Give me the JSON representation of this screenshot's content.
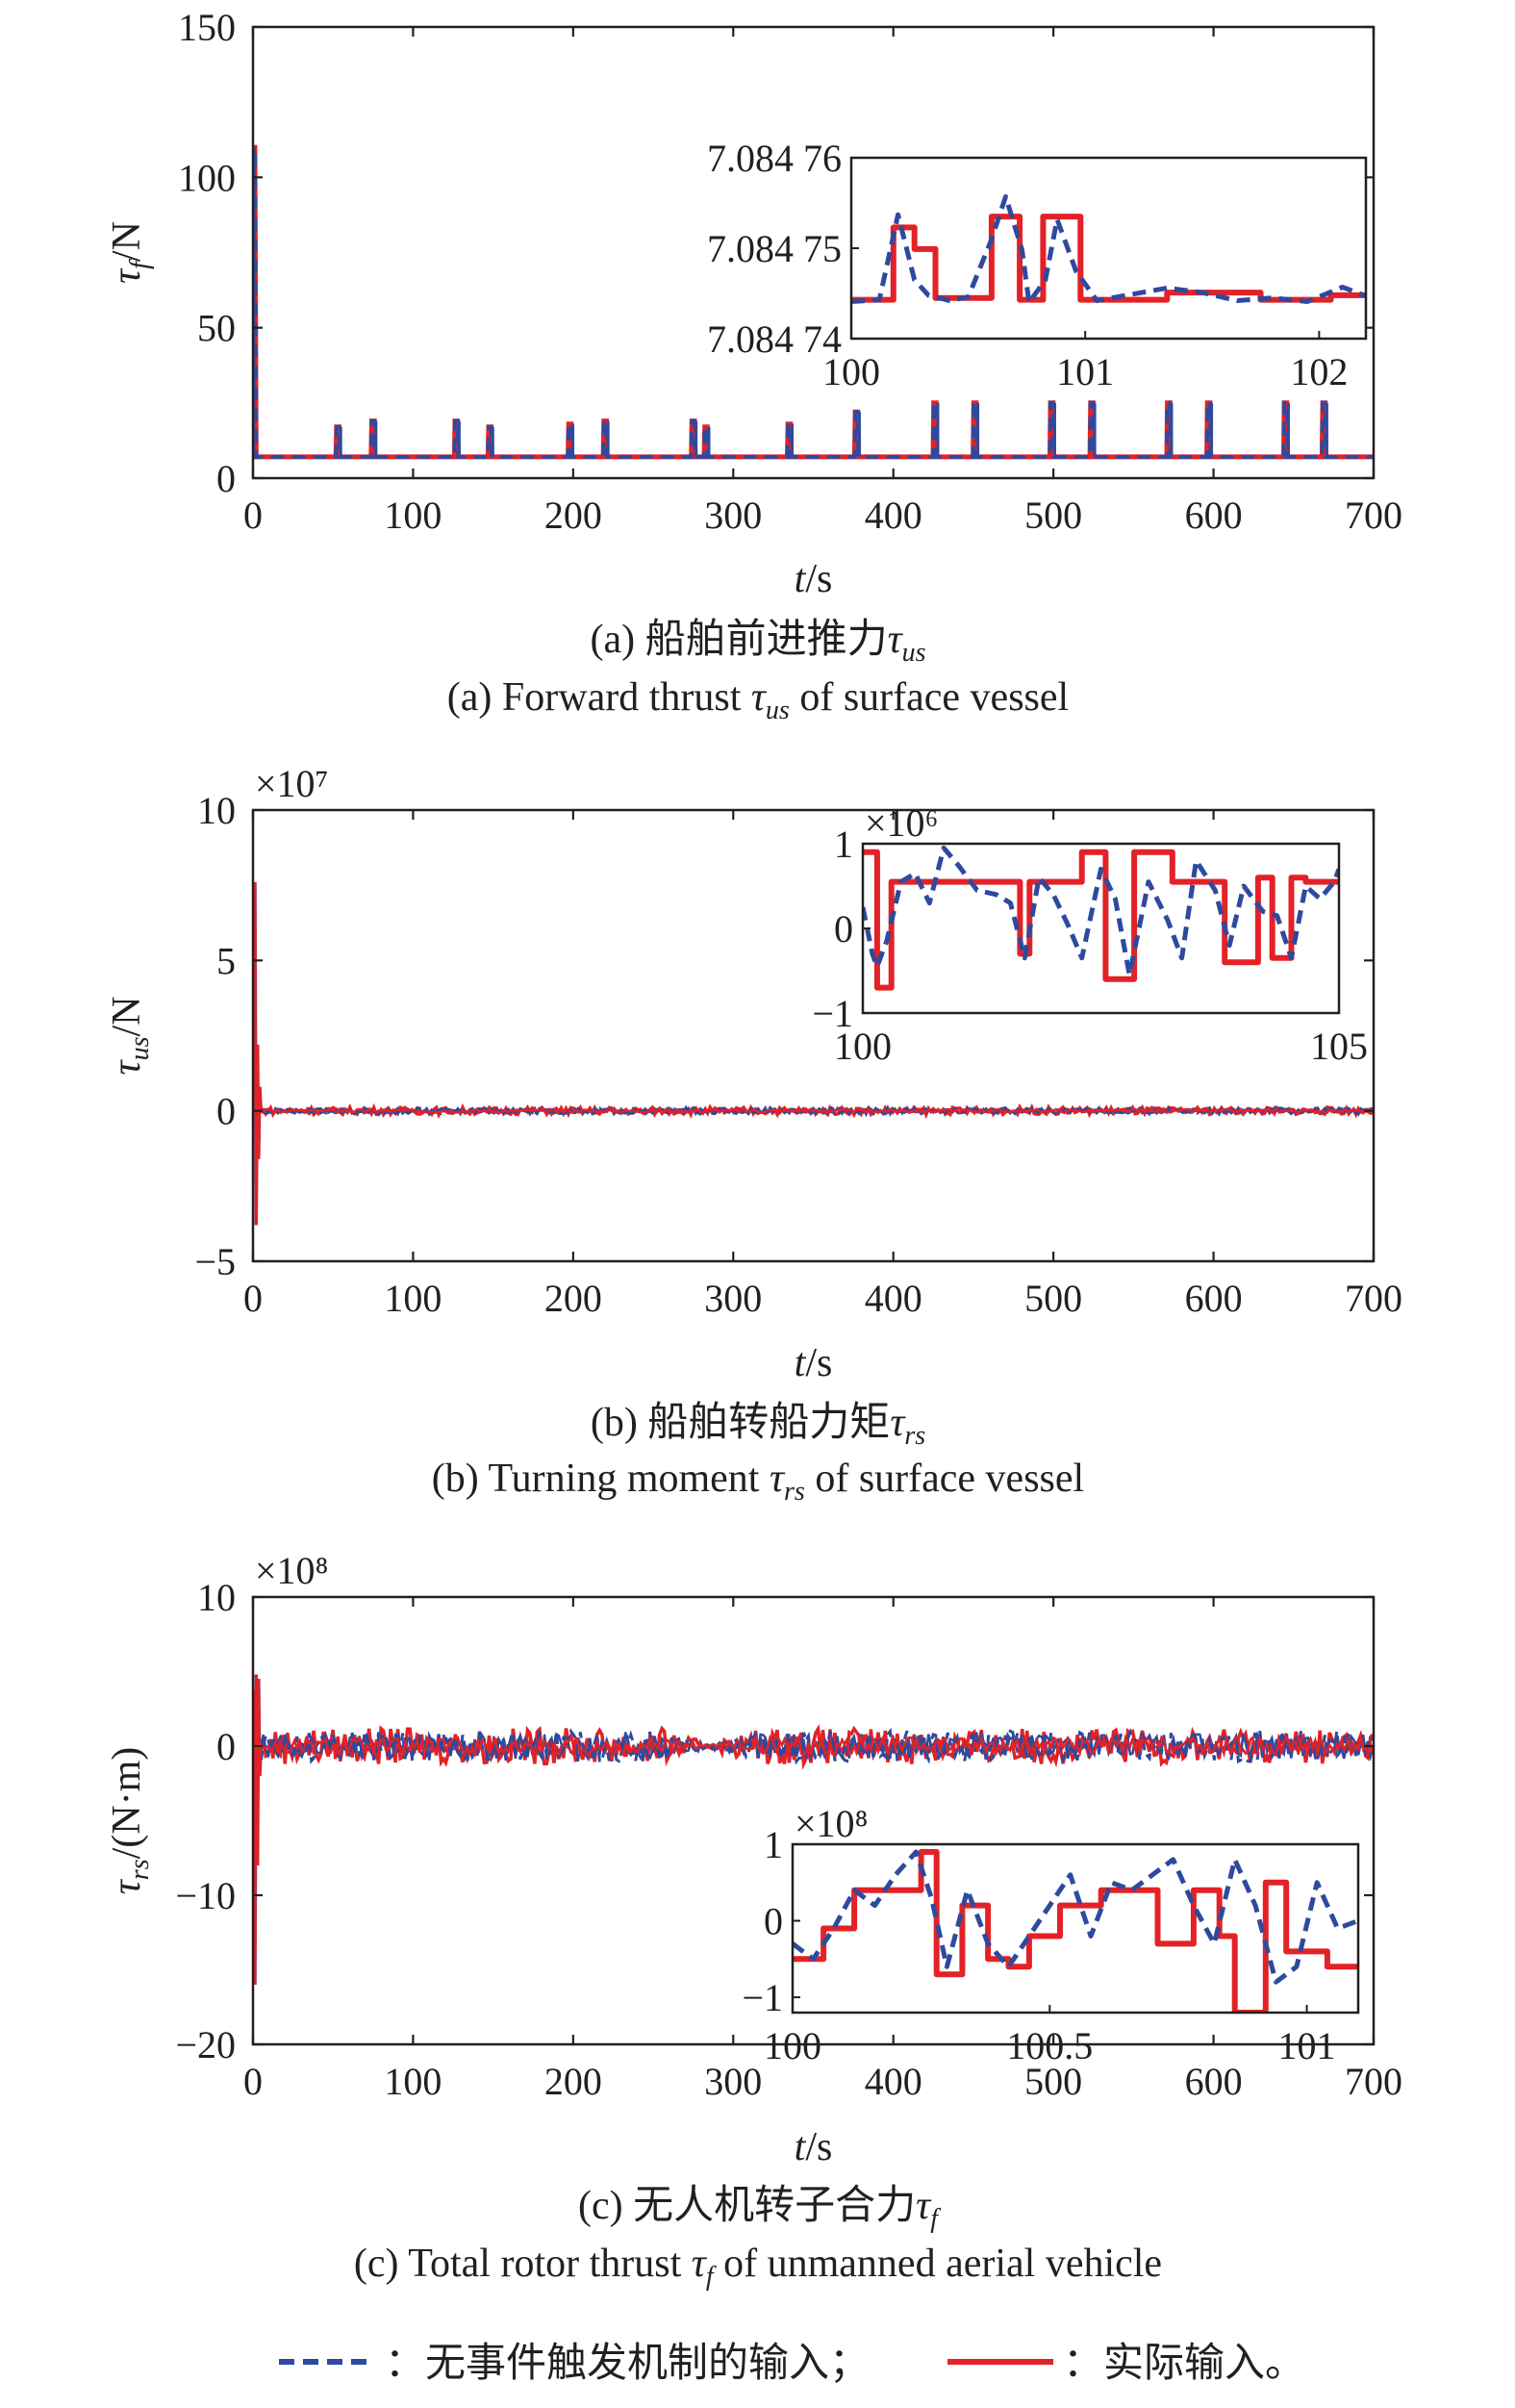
{
  "colors": {
    "no_trigger": "#2e4a9e",
    "actual": "#e32227",
    "axis": "#231f20"
  },
  "legend": {
    "no_trigger_label": "：无事件触发机制的输入；",
    "actual_label": "：实际输入。"
  },
  "chart_data": [
    {
      "id": "a",
      "type": "line",
      "caption_cn_prefix": "(a) 船舶前进推力",
      "caption_cn_sym": "τ",
      "caption_cn_sub": "us",
      "caption_en_prefix": "(a) Forward thrust ",
      "caption_en_sym": "τ",
      "caption_en_sub": "us",
      "caption_en_suffix": " of  surface vessel",
      "xlabel_var": "t",
      "xlabel_unit": "/s",
      "ylabel_sym": "τ",
      "ylabel_sub": "f",
      "ylabel_unit": "/N",
      "xlim": [
        0,
        700
      ],
      "ylim": [
        0,
        150
      ],
      "xticks": [
        0,
        100,
        200,
        300,
        400,
        500,
        600,
        700
      ],
      "yticks": [
        0,
        50,
        100,
        150
      ],
      "ytick_labels": [
        "0",
        "50",
        "100",
        "150"
      ],
      "exponent": "",
      "baseline": 7.08,
      "initial_spike": 110,
      "pulses": [
        {
          "t": 53,
          "v": 17
        },
        {
          "t": 75,
          "v": 19
        },
        {
          "t": 127,
          "v": 19
        },
        {
          "t": 148,
          "v": 17
        },
        {
          "t": 198,
          "v": 18
        },
        {
          "t": 220,
          "v": 19
        },
        {
          "t": 275,
          "v": 19
        },
        {
          "t": 283,
          "v": 17
        },
        {
          "t": 335,
          "v": 18
        },
        {
          "t": 377,
          "v": 22
        },
        {
          "t": 426,
          "v": 25
        },
        {
          "t": 451,
          "v": 25
        },
        {
          "t": 499,
          "v": 25
        },
        {
          "t": 524,
          "v": 25
        },
        {
          "t": 572,
          "v": 25
        },
        {
          "t": 597,
          "v": 25
        },
        {
          "t": 645,
          "v": 25
        },
        {
          "t": 669,
          "v": 25
        }
      ],
      "inset": {
        "xlim": [
          100,
          102.2
        ],
        "ylim": [
          7.08474,
          7.08476
        ],
        "xticks": [
          100,
          101,
          102
        ],
        "xtick_labels": [
          "100",
          "101",
          "102"
        ],
        "yticks": [
          7.08474,
          7.08475,
          7.08476
        ],
        "ytick_labels": [
          "7.084 74",
          "7.084 75",
          "7.084 76"
        ],
        "exponent": "",
        "series": [
          {
            "key": "no_trigger",
            "x": [
              100,
              100.12,
              100.2,
              100.27,
              100.33,
              100.42,
              100.5,
              100.6,
              100.66,
              100.73,
              100.76,
              100.83,
              100.88,
              100.96,
              101.05,
              101.2,
              101.35,
              101.5,
              101.65,
              101.8,
              101.95,
              102.1,
              102.2
            ],
            "y": [
              7.0847441,
              7.0847443,
              7.0847537,
              7.0847465,
              7.0847448,
              7.0847442,
              7.0847446,
              7.084751,
              7.0847557,
              7.0847498,
              7.084744,
              7.0847465,
              7.0847532,
              7.0847475,
              7.0847442,
              7.0847449,
              7.0847456,
              7.0847451,
              7.0847442,
              7.0847445,
              7.0847441,
              7.0847457,
              7.0847447
            ]
          },
          {
            "key": "actual",
            "x": [
              100,
              100.18,
              100.18,
              100.27,
              100.27,
              100.36,
              100.36,
              100.6,
              100.6,
              100.72,
              100.72,
              100.82,
              100.82,
              100.86,
              100.86,
              100.98,
              100.98,
              101.35,
              101.35,
              101.75,
              101.75,
              102.05,
              102.05,
              102.2
            ],
            "y": [
              7.0847443,
              7.0847443,
              7.0847523,
              7.0847523,
              7.0847499,
              7.0847499,
              7.0847445,
              7.0847445,
              7.0847535,
              7.0847535,
              7.0847443,
              7.0847443,
              7.0847535,
              7.0847535,
              7.0847535,
              7.0847535,
              7.0847443,
              7.0847443,
              7.0847451,
              7.0847451,
              7.0847443,
              7.0847443,
              7.0847448,
              7.0847448
            ]
          }
        ]
      }
    },
    {
      "id": "b",
      "type": "line",
      "caption_cn_prefix": "(b) 船舶转船力矩",
      "caption_cn_sym": "τ",
      "caption_cn_sub": "rs",
      "caption_en_prefix": "(b) Turning moment ",
      "caption_en_sym": "τ",
      "caption_en_sub": "rs",
      "caption_en_suffix": " of surface vessel",
      "xlabel_var": "t",
      "xlabel_unit": "/s",
      "ylabel_sym": "τ",
      "ylabel_sub": "us",
      "ylabel_unit": "/N",
      "xlim": [
        0,
        700
      ],
      "ylim": [
        -5,
        10
      ],
      "xticks": [
        0,
        100,
        200,
        300,
        400,
        500,
        600,
        700
      ],
      "yticks": [
        -5,
        0,
        5,
        10
      ],
      "ytick_labels": [
        "−5",
        "0",
        "5",
        "10"
      ],
      "exponent": "×10⁷",
      "initial_transient": {
        "t": [
          0.5,
          1.2,
          2,
          2.8,
          3.5,
          4.2,
          5
        ],
        "v": [
          6.8,
          7.6,
          -3.8,
          2.2,
          -1.6,
          0.8,
          0
        ]
      },
      "noise_amplitude": 0.12,
      "inset": {
        "xlim": [
          100,
          105
        ],
        "ylim": [
          -1,
          1
        ],
        "xticks": [
          100,
          105
        ],
        "xtick_labels": [
          "100",
          "105"
        ],
        "yticks": [
          -1,
          0,
          1
        ],
        "ytick_labels": [
          "−1",
          "0",
          "1"
        ],
        "exponent": "×10⁶",
        "series": [
          {
            "key": "no_trigger",
            "x": [
              100,
              100.1,
              100.15,
              100.25,
              100.4,
              100.55,
              100.7,
              100.85,
              101,
              101.2,
              101.4,
              101.55,
              101.7,
              101.85,
              102,
              102.15,
              102.3,
              102.5,
              102.65,
              102.8,
              103,
              103.2,
              103.35,
              103.5,
              103.7,
              103.85,
              104,
              104.2,
              104.35,
              104.5,
              104.65,
              104.8,
              104.95,
              105
            ],
            "y": [
              0.25,
              -0.3,
              -0.45,
              -0.15,
              0.55,
              0.65,
              0.3,
              0.95,
              0.75,
              0.45,
              0.4,
              0.3,
              -0.35,
              0.6,
              0.4,
              0.05,
              -0.35,
              0.7,
              0.35,
              -0.55,
              0.55,
              0.1,
              -0.35,
              0.8,
              0.45,
              -0.2,
              0.5,
              0.2,
              0.15,
              -0.35,
              0.5,
              0.35,
              0.55,
              0.7
            ]
          },
          {
            "key": "actual",
            "x": [
              100,
              100.15,
              100.15,
              100.3,
              100.3,
              100.75,
              100.75,
              101.65,
              101.65,
              101.75,
              101.75,
              102.3,
              102.3,
              102.55,
              102.55,
              102.85,
              102.85,
              103.25,
              103.25,
              103.35,
              103.35,
              103.8,
              103.8,
              104.15,
              104.15,
              104.3,
              104.3,
              104.5,
              104.5,
              104.65,
              104.65,
              105
            ],
            "y": [
              0.9,
              0.9,
              -0.7,
              -0.7,
              0.55,
              0.55,
              0.55,
              0.55,
              -0.3,
              -0.3,
              0.55,
              0.55,
              0.9,
              0.9,
              -0.6,
              -0.6,
              0.9,
              0.9,
              0.55,
              0.55,
              0.55,
              0.55,
              -0.4,
              -0.4,
              0.6,
              0.6,
              -0.35,
              -0.35,
              0.6,
              0.6,
              0.55,
              0.55
            ]
          }
        ]
      }
    },
    {
      "id": "c",
      "type": "line",
      "caption_cn_prefix": "(c) 无人机转子合力",
      "caption_cn_sym": "τ",
      "caption_cn_sub": "f",
      "caption_en_prefix": "(c) Total rotor thrust ",
      "caption_en_sym": "τ",
      "caption_en_sub": "f",
      "caption_en_suffix": " of unmanned aerial vehicle",
      "xlabel_var": "t",
      "xlabel_unit": "/s",
      "ylabel_sym": "τ",
      "ylabel_sub": "rs",
      "ylabel_unit": "/(N·m)",
      "xlim": [
        0,
        700
      ],
      "ylim": [
        -20,
        10
      ],
      "xticks": [
        0,
        100,
        200,
        300,
        400,
        500,
        600,
        700
      ],
      "yticks": [
        -20,
        -10,
        0,
        10
      ],
      "ytick_labels": [
        "−20",
        "−10",
        "0",
        "10"
      ],
      "exponent": "×10⁸",
      "initial_transient": {
        "t": [
          0.5,
          1.2,
          2,
          2.8,
          3.5,
          4.2,
          5
        ],
        "v": [
          3.8,
          -16,
          4.8,
          -8,
          4.5,
          -2,
          0
        ]
      },
      "noise_amplitude": 1.2,
      "noise_dip": {
        "center": 285,
        "width": 30
      },
      "inset": {
        "xlim": [
          100,
          101.1
        ],
        "ylim": [
          -1.2,
          1
        ],
        "xticks": [
          100,
          100.5,
          101
        ],
        "xtick_labels": [
          "100",
          "100.5",
          "101"
        ],
        "yticks": [
          -1,
          0,
          1
        ],
        "ytick_labels": [
          "−1",
          "0",
          "1"
        ],
        "exponent": "×10⁸",
        "series": [
          {
            "key": "no_trigger",
            "x": [
              100,
              100.04,
              100.08,
              100.12,
              100.16,
              100.2,
              100.24,
              100.27,
              100.3,
              100.34,
              100.38,
              100.42,
              100.46,
              100.5,
              100.54,
              100.58,
              100.62,
              100.66,
              100.7,
              100.74,
              100.78,
              100.82,
              100.86,
              100.9,
              100.94,
              100.98,
              101.02,
              101.06,
              101.1
            ],
            "y": [
              -0.3,
              -0.5,
              -0.1,
              0.4,
              0.2,
              0.6,
              0.9,
              0.3,
              -0.6,
              0.4,
              -0.3,
              -0.6,
              -0.2,
              0.2,
              0.6,
              -0.2,
              0.5,
              0.4,
              0.6,
              0.8,
              0.2,
              -0.3,
              0.8,
              0.2,
              -0.8,
              -0.6,
              0.5,
              -0.1,
              0.0
            ]
          },
          {
            "key": "actual",
            "x": [
              100,
              100.06,
              100.06,
              100.12,
              100.12,
              100.23,
              100.23,
              100.25,
              100.25,
              100.28,
              100.28,
              100.33,
              100.33,
              100.38,
              100.38,
              100.42,
              100.42,
              100.46,
              100.46,
              100.52,
              100.52,
              100.6,
              100.6,
              100.66,
              100.66,
              100.71,
              100.71,
              100.78,
              100.78,
              100.83,
              100.83,
              100.86,
              100.86,
              100.92,
              100.92,
              100.96,
              100.96,
              101.04,
              101.04,
              101.1
            ],
            "y": [
              -0.5,
              -0.5,
              -0.1,
              -0.1,
              0.4,
              0.4,
              0.4,
              0.4,
              0.9,
              0.9,
              -0.7,
              -0.7,
              0.2,
              0.2,
              -0.5,
              -0.5,
              -0.6,
              -0.6,
              -0.2,
              -0.2,
              0.2,
              0.2,
              0.4,
              0.4,
              0.4,
              0.4,
              -0.3,
              -0.3,
              0.4,
              0.4,
              -0.2,
              -0.2,
              -1.2,
              -1.2,
              0.5,
              0.5,
              -0.4,
              -0.4,
              -0.6,
              -0.6
            ]
          }
        ]
      }
    }
  ]
}
